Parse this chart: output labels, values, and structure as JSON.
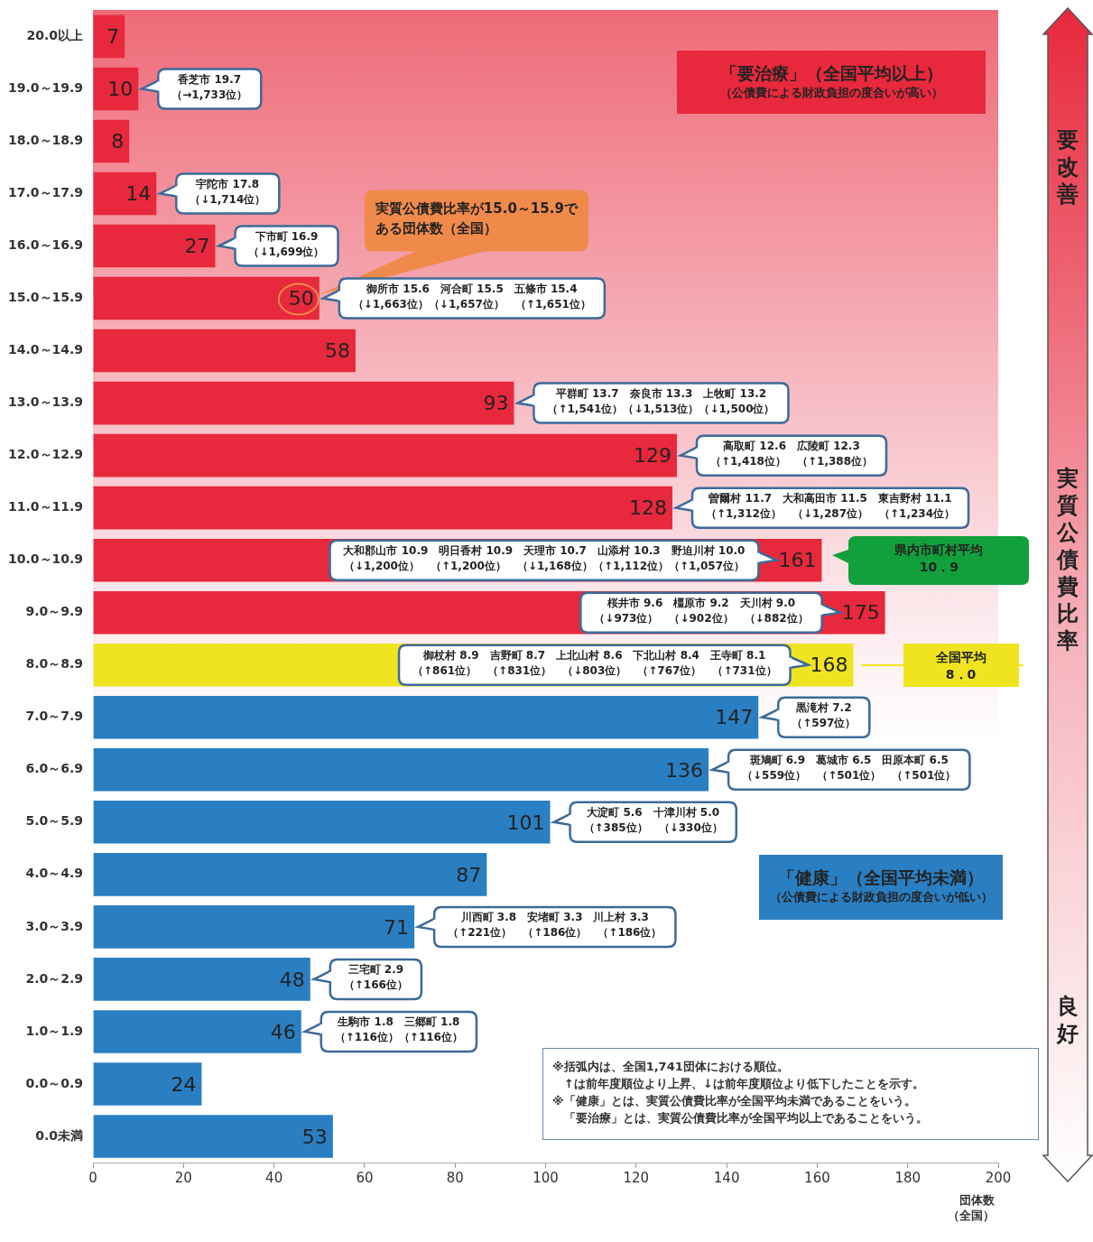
{
  "chart_data": {
    "type": "bar",
    "orientation": "horizontal",
    "xlabel": "団体数（全国）",
    "categories": [
      "20.0以上",
      "19.0～19.9",
      "18.0～18.9",
      "17.0～17.9",
      "16.0～16.9",
      "15.0～15.9",
      "14.0～14.9",
      "13.0～13.9",
      "12.0～12.9",
      "11.0～11.9",
      "10.0～10.9",
      "9.0～9.9",
      "8.0～8.9",
      "7.0～7.9",
      "6.0～6.9",
      "5.0～5.9",
      "4.0～4.9",
      "3.0～3.9",
      "2.0～2.9",
      "1.0～1.9",
      "0.0～0.9",
      "0.0未満"
    ],
    "values": [
      7,
      10,
      8,
      14,
      27,
      50,
      58,
      93,
      129,
      128,
      161,
      175,
      168,
      147,
      136,
      101,
      87,
      71,
      48,
      46,
      24,
      53
    ],
    "colors": [
      "#e8283c",
      "#e8283c",
      "#e8283c",
      "#e8283c",
      "#e8283c",
      "#e8283c",
      "#e8283c",
      "#e8283c",
      "#e8283c",
      "#e8283c",
      "#e8283c",
      "#e8283c",
      "#f0e420",
      "#2a7fc3",
      "#2a7fc3",
      "#2a7fc3",
      "#2a7fc3",
      "#2a7fc3",
      "#2a7fc3",
      "#2a7fc3",
      "#2a7fc3",
      "#2a7fc3"
    ],
    "data_labels": true,
    "xlim": [
      0,
      200
    ],
    "xticks": [
      0,
      20,
      40,
      60,
      80,
      100,
      120,
      140,
      160,
      180,
      200
    ],
    "grid": false,
    "annotations": [
      "「要治療」（全国平均以上）",
      "（公債費による財政負担の度合いが高い）",
      "「健康」（全国平均未満）",
      "（公債費による財政負担の度合いが低い）",
      "※括弧内は、全国1,741団体における順位。",
      "↑は前年度順位より上昇、↓は前年度順位より低下したことを示す。",
      "※「健康」とは、実質公債費比率が全国平均未満であることをいう。",
      "「要治療」とは、実質公債費比率が全国平均以上であることをいう。",
      "要改善",
      "実質公債費比率",
      "良好",
      "県内市町村平均10．9",
      "全国平均8．0",
      "香芝市 19.7（→1,733位）",
      "宇陀市 17.8（↓1,714位）",
      "下市町 16.9（↓1,699位）",
      "御所市 15.6　河合町 15.5　五條市 15.4（↓1,663位）（↓1,657位）　（↑1,651位）",
      "平群町 13.7　奈良市 13.3　上牧町 13.2（↑1,541位）（↓1,513位）（↓1,500位）",
      "高取町 12.6　広陵町 12.3（↑1,418位）　（↑1,388位）",
      "曽爾村 11.7　大和高田市 11.5　東吉野村 11.1（↑1,312位）　（↓1,287位）　（↑1,234位）",
      "大和郡山市 10.9　明日香村 10.9　天理市 10.7　山添村 10.3　野迫川村 10.0（↓1,200位）　（↑1,200位）　（↓1,168位）（↑1,112位）（↑1,057位）",
      "桜井市 9.6　橿原市 9.2　天川村 9.0（↓973位）　（↓902位）　（↓882位）",
      "御杖村 8.9　吉野町 8.7　上北山村 8.6　下北山村 8.4　王寺町 8.1（↑861位）　（↑831位）　（↓803位）　（↑767位）　（↑731位）",
      "黒滝村 7.2（↑597位）",
      "斑鳩町 6.9　葛城市 6.5　田原本町 6.5（↓559位）　（↑501位）　（↑501位）",
      "大淀町 5.6　十津川村 5.0（↑385位）　（↓330位）",
      "川西町 3.8　安堵町 3.3　川上村 3.3（↑221位）　（↑186位）　（↑186位）",
      "三宅町 2.9（↑166位）",
      "生駒市 1.8　三郷町 1.8（↑116位）（↑116位）",
      {
        "text": "実質公債費比率が15.0～15.9である団体数（全国）",
        "x": 50,
        "y": "15.0～15.9"
      }
    ]
  }
}
